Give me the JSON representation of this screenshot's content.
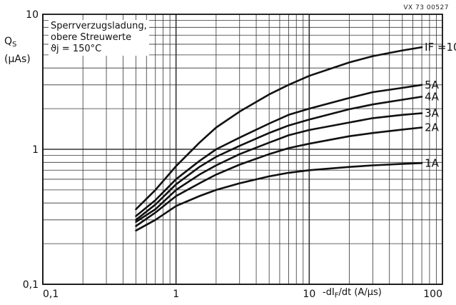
{
  "figure_ref": "VX 73 00527",
  "annotation": {
    "line1": "Sperrverzugsladung,",
    "line2": "obere  Streuwerte",
    "line3": "ϑj = 150°C"
  },
  "colors": {
    "ink": "#111111",
    "grid": "#333333",
    "background": "#ffffff"
  },
  "chart_data": {
    "type": "line",
    "title": "",
    "xlabel": "-dIF/dt (A/µs)",
    "ylabel": "QS (µAs)",
    "xscale": "log",
    "yscale": "log",
    "xlim": [
      0.1,
      100
    ],
    "ylim": [
      0.1,
      10
    ],
    "grid": true,
    "xticks": [
      {
        "v": 0.1,
        "label": "0,1"
      },
      {
        "v": 1,
        "label": "1"
      },
      {
        "v": 10,
        "label": "10"
      },
      {
        "v": 100,
        "label": "100"
      }
    ],
    "yticks": [
      {
        "v": 0.1,
        "label": "0,1"
      },
      {
        "v": 1,
        "label": "1"
      },
      {
        "v": 10,
        "label": "10"
      }
    ],
    "series": [
      {
        "name": "IF =10A",
        "x": [
          0.5,
          0.7,
          1,
          1.5,
          2,
          3,
          5,
          7,
          10,
          20,
          30,
          50,
          70
        ],
        "y": [
          0.36,
          0.5,
          0.75,
          1.12,
          1.45,
          1.9,
          2.55,
          3.0,
          3.5,
          4.4,
          4.9,
          5.4,
          5.7
        ]
      },
      {
        "name": "5A",
        "x": [
          0.5,
          0.7,
          1,
          1.5,
          2,
          3,
          5,
          7,
          10,
          20,
          30,
          50,
          70
        ],
        "y": [
          0.32,
          0.42,
          0.6,
          0.82,
          1.0,
          1.22,
          1.55,
          1.8,
          2.0,
          2.4,
          2.65,
          2.85,
          3.0
        ]
      },
      {
        "name": "4A",
        "x": [
          0.5,
          0.7,
          1,
          1.5,
          2,
          3,
          5,
          7,
          10,
          20,
          30,
          50,
          70
        ],
        "y": [
          0.3,
          0.39,
          0.55,
          0.74,
          0.88,
          1.06,
          1.32,
          1.5,
          1.66,
          1.98,
          2.15,
          2.33,
          2.45
        ]
      },
      {
        "name": "3A",
        "x": [
          0.5,
          0.7,
          1,
          1.5,
          2,
          3,
          5,
          7,
          10,
          20,
          30,
          50,
          70
        ],
        "y": [
          0.29,
          0.36,
          0.5,
          0.65,
          0.76,
          0.92,
          1.12,
          1.27,
          1.39,
          1.58,
          1.7,
          1.8,
          1.85
        ]
      },
      {
        "name": "2A",
        "x": [
          0.5,
          0.7,
          1,
          1.5,
          2,
          3,
          5,
          7,
          10,
          20,
          30,
          50,
          70
        ],
        "y": [
          0.27,
          0.34,
          0.45,
          0.56,
          0.65,
          0.77,
          0.92,
          1.02,
          1.1,
          1.25,
          1.32,
          1.4,
          1.45
        ]
      },
      {
        "name": "1A",
        "x": [
          0.5,
          0.7,
          1,
          1.5,
          2,
          3,
          5,
          7,
          10,
          20,
          30,
          50,
          70
        ],
        "y": [
          0.25,
          0.3,
          0.38,
          0.45,
          0.5,
          0.56,
          0.63,
          0.67,
          0.7,
          0.74,
          0.76,
          0.78,
          0.79
        ]
      }
    ]
  }
}
